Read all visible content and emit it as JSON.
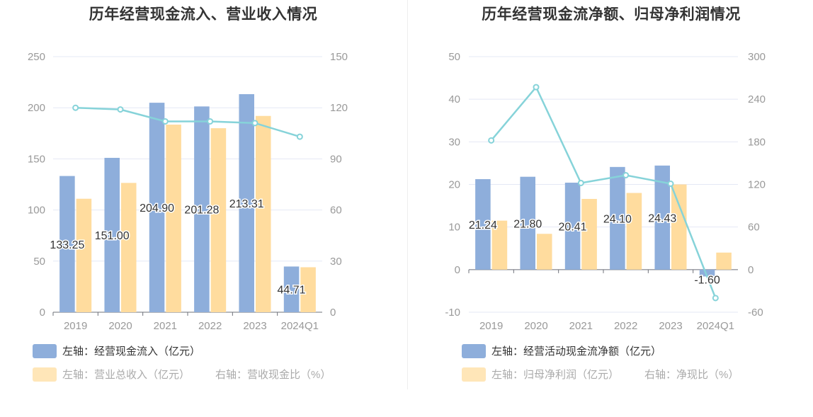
{
  "colors": {
    "bar_primary": "#8eaedb",
    "bar_secondary": "#ffdc9e",
    "line": "#86d3d9",
    "grid": "#e4e8f5",
    "axis_text": "#999999"
  },
  "chart_data": [
    {
      "type": "bar",
      "title": "历年经营现金流入、营业收入情况",
      "categories": [
        "2019",
        "2020",
        "2021",
        "2022",
        "2023",
        "2024Q1"
      ],
      "left_axis": {
        "ylim": [
          0,
          250
        ],
        "ticks": [
          "0",
          "50",
          "100",
          "150",
          "200",
          "250"
        ]
      },
      "right_axis": {
        "ylim": [
          0,
          150
        ],
        "ticks": [
          "0",
          "30",
          "60",
          "90",
          "120",
          "150"
        ]
      },
      "series": [
        {
          "name": "左轴：经营现金流入（亿元）",
          "kind": "bar",
          "axis": "left",
          "values": [
            133.25,
            151.0,
            204.9,
            201.28,
            213.31,
            44.71
          ],
          "labels": [
            "133.25",
            "151.00",
            "204.90",
            "201.28",
            "213.31",
            "44.71"
          ]
        },
        {
          "name": "左轴：营业总收入（亿元）",
          "kind": "bar",
          "axis": "left",
          "values": [
            111,
            126.5,
            183.5,
            180,
            192,
            44
          ]
        },
        {
          "name": "右轴：营收现金比（%）",
          "kind": "line",
          "axis": "right",
          "values": [
            120,
            119,
            112,
            112,
            111,
            103
          ]
        }
      ],
      "legend_placement": "bottom-left",
      "grid": true
    },
    {
      "type": "bar",
      "title": "历年经营现金流净额、归母净利润情况",
      "categories": [
        "2019",
        "2020",
        "2021",
        "2022",
        "2023",
        "2024Q1"
      ],
      "left_axis": {
        "ylim": [
          -10,
          50
        ],
        "ticks": [
          "-10",
          "0",
          "10",
          "20",
          "30",
          "40",
          "50"
        ]
      },
      "right_axis": {
        "ylim": [
          -60,
          300
        ],
        "ticks": [
          "-60",
          "0",
          "60",
          "120",
          "180",
          "240",
          "300"
        ]
      },
      "series": [
        {
          "name": "左轴：经营活动现金流净额（亿元）",
          "kind": "bar",
          "axis": "left",
          "values": [
            21.24,
            21.8,
            20.41,
            24.1,
            24.43,
            -1.6
          ],
          "labels": [
            "21.24",
            "21.80",
            "20.41",
            "24.10",
            "24.43",
            "-1.60"
          ]
        },
        {
          "name": "左轴：归母净利润（亿元）",
          "kind": "bar",
          "axis": "left",
          "values": [
            11.5,
            8.4,
            16.6,
            18.0,
            20.0,
            4.0
          ]
        },
        {
          "name": "右轴：净现比（%）",
          "kind": "line",
          "axis": "right",
          "values": [
            182,
            257,
            122,
            133,
            121,
            -40
          ]
        }
      ],
      "legend_placement": "bottom-left",
      "grid": true
    }
  ]
}
